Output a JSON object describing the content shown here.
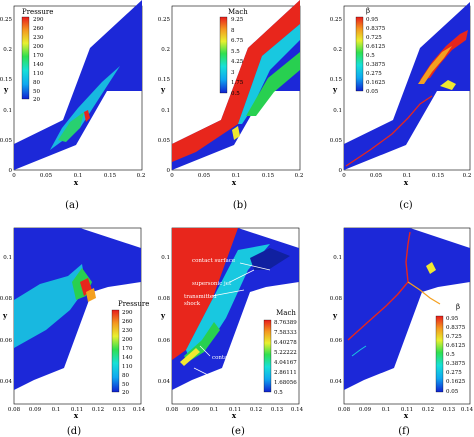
{
  "captions": [
    "(a)",
    "(b)",
    "(c)",
    "(d)",
    "(e)",
    "(f)"
  ],
  "axis": {
    "x_label": "x",
    "y_label": "y"
  },
  "top": {
    "x_ticks": [
      "0",
      "0.05",
      "0.1",
      "0.15",
      "0.2"
    ],
    "y_ticks": [
      "0",
      "0.05",
      "0.1",
      "0.15",
      "0.2",
      "0.25"
    ]
  },
  "bottom": {
    "x_ticks": [
      "0.08",
      "0.09",
      "0.1",
      "0.11",
      "0.12",
      "0.13",
      "0.14"
    ],
    "y_ticks": [
      "0.04",
      "0.06",
      "0.08",
      "0.1"
    ]
  },
  "panels": {
    "a": {
      "legend_title": "Pressure",
      "legend_values": [
        "290",
        "260",
        "230",
        "200",
        "170",
        "140",
        "110",
        "80",
        "50",
        "20"
      ]
    },
    "b": {
      "legend_title": "Mach",
      "legend_values": [
        "9.25",
        "8",
        "6.75",
        "5.5",
        "4.25",
        "3",
        "1.75",
        "0.5"
      ]
    },
    "c": {
      "legend_title": "β",
      "legend_values": [
        "0.95",
        "0.8375",
        "0.725",
        "0.6125",
        "0.5",
        "0.3875",
        "0.275",
        "0.1625",
        "0.05"
      ]
    },
    "d": {
      "legend_title": "Pressure",
      "legend_values": [
        "290",
        "260",
        "230",
        "200",
        "170",
        "140",
        "110",
        "80",
        "50",
        "20"
      ]
    },
    "e": {
      "legend_title": "Mach",
      "legend_values": [
        "8.76389",
        "7.58333",
        "6.40278",
        "5.22222",
        "4.04167",
        "2.86111",
        "1.68056",
        "0.5"
      ],
      "annotations": [
        "contact surface",
        "supersonic jet",
        "transmitted",
        "shock",
        "contact surface",
        "separation zone"
      ]
    },
    "f": {
      "legend_title": "β",
      "legend_values": [
        "0.95",
        "0.8375",
        "0.725",
        "0.6125",
        "0.5",
        "0.3875",
        "0.275",
        "0.1625",
        "0.05"
      ]
    }
  },
  "colors": {
    "domain": "#1c28d8",
    "red": "#e8261c",
    "orange": "#f4a020",
    "yellow": "#f0e830",
    "green": "#28d050",
    "cyan": "#18c8e0"
  }
}
